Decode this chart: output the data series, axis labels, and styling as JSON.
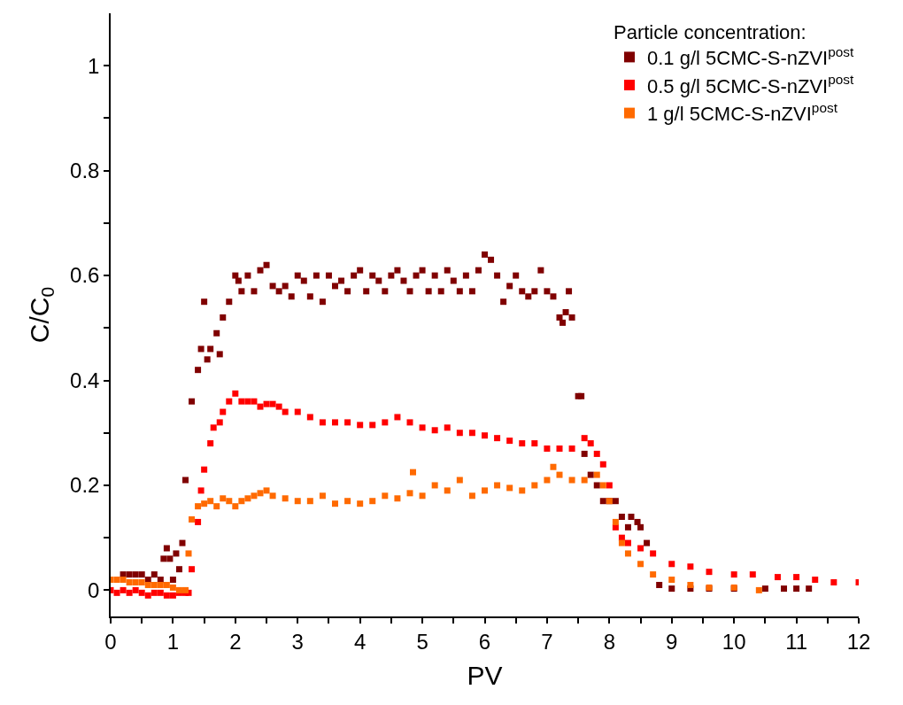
{
  "chart_data": {
    "type": "scatter",
    "xlabel": "PV",
    "ylabel": "C/C$_{0}$",
    "legend_title": "Particle concentration:",
    "legend": "top right",
    "marker": "square",
    "xlim": [
      0,
      12
    ],
    "ylim": [
      -0.05,
      1.1
    ],
    "xticks": [
      0,
      {
        "value": 0.5,
        "label": null
      },
      1,
      {
        "value": 1.5,
        "label": null
      },
      2,
      {
        "value": 2.5,
        "label": null
      },
      3,
      {
        "value": 3.5,
        "label": null
      },
      4,
      {
        "value": 4.5,
        "label": null
      },
      5,
      {
        "value": 5.5,
        "label": null
      },
      6,
      {
        "value": 6.5,
        "label": null
      },
      7,
      {
        "value": 7.5,
        "label": null
      },
      8,
      {
        "value": 8.5,
        "label": null
      },
      9,
      {
        "value": 9.5,
        "label": null
      },
      10,
      {
        "value": 10.5,
        "label": null
      },
      11,
      {
        "value": 11.5,
        "label": null
      },
      12
    ],
    "yticks": [
      0,
      {
        "value": 0.1,
        "label": null
      },
      0.2,
      {
        "value": 0.3,
        "label": null
      },
      0.4,
      {
        "value": 0.5,
        "label": null
      },
      0.6,
      {
        "value": 0.7,
        "label": null
      },
      0.8,
      {
        "value": 0.9,
        "label": null
      },
      1
    ],
    "series": [
      {
        "name": "0.1 g/l 5CMC-S-nZVI$^{post}$",
        "color": "#800000",
        "x": [
          0.2,
          0.3,
          0.4,
          0.5,
          0.6,
          0.7,
          0.8,
          0.85,
          0.9,
          0.95,
          1.0,
          1.05,
          1.1,
          1.15,
          1.2,
          1.3,
          1.4,
          1.45,
          1.5,
          1.55,
          1.6,
          1.7,
          1.75,
          1.8,
          1.9,
          2.0,
          2.05,
          2.1,
          2.2,
          2.3,
          2.4,
          2.5,
          2.6,
          2.7,
          2.8,
          2.9,
          3.0,
          3.1,
          3.2,
          3.3,
          3.4,
          3.5,
          3.6,
          3.7,
          3.8,
          3.9,
          4.0,
          4.1,
          4.2,
          4.3,
          4.4,
          4.5,
          4.6,
          4.7,
          4.8,
          4.9,
          5.0,
          5.1,
          5.2,
          5.3,
          5.4,
          5.5,
          5.6,
          5.7,
          5.8,
          5.9,
          6.0,
          6.1,
          6.2,
          6.3,
          6.4,
          6.5,
          6.6,
          6.7,
          6.8,
          6.9,
          7.0,
          7.1,
          7.2,
          7.25,
          7.3,
          7.35,
          7.4,
          7.5,
          7.55,
          7.6,
          7.7,
          7.8,
          7.9,
          8.0,
          8.1,
          8.2,
          8.3,
          8.35,
          8.45,
          8.5,
          8.6,
          8.8,
          9.0,
          9.3,
          9.6,
          10.0,
          10.5,
          10.8,
          11.0,
          11.2
        ],
        "values": [
          0.03,
          0.03,
          0.03,
          0.03,
          0.02,
          0.03,
          0.02,
          0.06,
          0.08,
          0.06,
          0.02,
          0.07,
          0.04,
          0.09,
          0.21,
          0.36,
          0.42,
          0.46,
          0.55,
          0.44,
          0.46,
          0.49,
          0.45,
          0.52,
          0.55,
          0.6,
          0.59,
          0.57,
          0.6,
          0.57,
          0.61,
          0.62,
          0.58,
          0.57,
          0.58,
          0.56,
          0.6,
          0.59,
          0.56,
          0.6,
          0.55,
          0.6,
          0.58,
          0.59,
          0.57,
          0.6,
          0.61,
          0.57,
          0.6,
          0.59,
          0.57,
          0.6,
          0.61,
          0.59,
          0.57,
          0.6,
          0.61,
          0.57,
          0.6,
          0.57,
          0.61,
          0.59,
          0.57,
          0.6,
          0.57,
          0.61,
          0.64,
          0.63,
          0.6,
          0.55,
          0.58,
          0.6,
          0.57,
          0.56,
          0.57,
          0.61,
          0.57,
          0.56,
          0.52,
          0.51,
          0.53,
          0.57,
          0.52,
          0.37,
          0.37,
          0.26,
          0.22,
          0.2,
          0.17,
          0.17,
          0.17,
          0.14,
          0.12,
          0.14,
          0.13,
          0.12,
          0.09,
          0.01,
          0.003,
          0.003,
          0.003,
          0.003,
          0.003,
          0.003,
          0.003,
          0.003
        ]
      },
      {
        "name": "0.5 g/l 5CMC-S-nZVI$^{post}$",
        "color": "#ff0000",
        "x": [
          0.0,
          0.1,
          0.2,
          0.3,
          0.4,
          0.5,
          0.6,
          0.7,
          0.8,
          0.9,
          1.0,
          1.1,
          1.2,
          1.25,
          1.3,
          1.4,
          1.45,
          1.5,
          1.6,
          1.65,
          1.75,
          1.8,
          1.9,
          2.0,
          2.1,
          2.2,
          2.3,
          2.4,
          2.5,
          2.6,
          2.7,
          2.8,
          3.0,
          3.2,
          3.4,
          3.6,
          3.8,
          4.0,
          4.2,
          4.4,
          4.6,
          4.8,
          5.0,
          5.2,
          5.4,
          5.6,
          5.8,
          6.0,
          6.2,
          6.4,
          6.6,
          6.8,
          7.0,
          7.2,
          7.4,
          7.6,
          7.7,
          7.8,
          7.9,
          8.0,
          8.1,
          8.2,
          8.3,
          8.5,
          8.7,
          9.0,
          9.3,
          9.6,
          10.0,
          10.3,
          10.7,
          11.0,
          11.3,
          11.6,
          12.0
        ],
        "values": [
          0.0,
          -0.005,
          0.0,
          -0.005,
          0.0,
          -0.005,
          -0.01,
          -0.005,
          -0.005,
          -0.01,
          -0.01,
          -0.005,
          -0.005,
          -0.005,
          0.04,
          0.13,
          0.19,
          0.23,
          0.28,
          0.31,
          0.32,
          0.34,
          0.36,
          0.375,
          0.36,
          0.36,
          0.36,
          0.35,
          0.355,
          0.355,
          0.35,
          0.34,
          0.34,
          0.33,
          0.32,
          0.32,
          0.32,
          0.315,
          0.315,
          0.32,
          0.33,
          0.32,
          0.31,
          0.305,
          0.31,
          0.3,
          0.3,
          0.295,
          0.29,
          0.285,
          0.28,
          0.28,
          0.27,
          0.27,
          0.27,
          0.29,
          0.28,
          0.26,
          0.24,
          0.2,
          0.12,
          0.1,
          0.09,
          0.08,
          0.07,
          0.05,
          0.045,
          0.035,
          0.03,
          0.03,
          0.025,
          0.025,
          0.02,
          0.015,
          0.015
        ]
      },
      {
        "name": "1 g/l 5CMC-S-nZVI$^{post}$",
        "color": "#ff6a00",
        "x": [
          0.0,
          0.1,
          0.2,
          0.3,
          0.4,
          0.5,
          0.6,
          0.7,
          0.8,
          0.9,
          1.0,
          1.1,
          1.2,
          1.25,
          1.3,
          1.4,
          1.5,
          1.6,
          1.7,
          1.8,
          1.9,
          2.0,
          2.1,
          2.2,
          2.3,
          2.4,
          2.5,
          2.6,
          2.8,
          3.0,
          3.2,
          3.4,
          3.6,
          3.8,
          4.0,
          4.2,
          4.4,
          4.6,
          4.8,
          4.85,
          5.0,
          5.2,
          5.4,
          5.6,
          5.8,
          6.0,
          6.2,
          6.4,
          6.6,
          6.8,
          7.0,
          7.1,
          7.2,
          7.4,
          7.6,
          7.8,
          7.9,
          8.0,
          8.1,
          8.2,
          8.3,
          8.5,
          8.7,
          9.0,
          9.3,
          9.6,
          10.0,
          10.4
        ],
        "values": [
          0.02,
          0.02,
          0.02,
          0.015,
          0.015,
          0.015,
          0.01,
          0.01,
          0.01,
          0.01,
          0.005,
          0.0,
          0.0,
          0.07,
          0.135,
          0.16,
          0.165,
          0.17,
          0.16,
          0.175,
          0.17,
          0.16,
          0.17,
          0.175,
          0.18,
          0.185,
          0.19,
          0.18,
          0.175,
          0.17,
          0.17,
          0.18,
          0.165,
          0.17,
          0.165,
          0.17,
          0.18,
          0.175,
          0.185,
          0.225,
          0.18,
          0.2,
          0.19,
          0.21,
          0.18,
          0.19,
          0.2,
          0.195,
          0.19,
          0.2,
          0.21,
          0.235,
          0.22,
          0.21,
          0.21,
          0.22,
          0.2,
          0.17,
          0.13,
          0.09,
          0.07,
          0.05,
          0.03,
          0.02,
          0.01,
          0.005,
          0.005,
          0.0
        ]
      }
    ]
  }
}
